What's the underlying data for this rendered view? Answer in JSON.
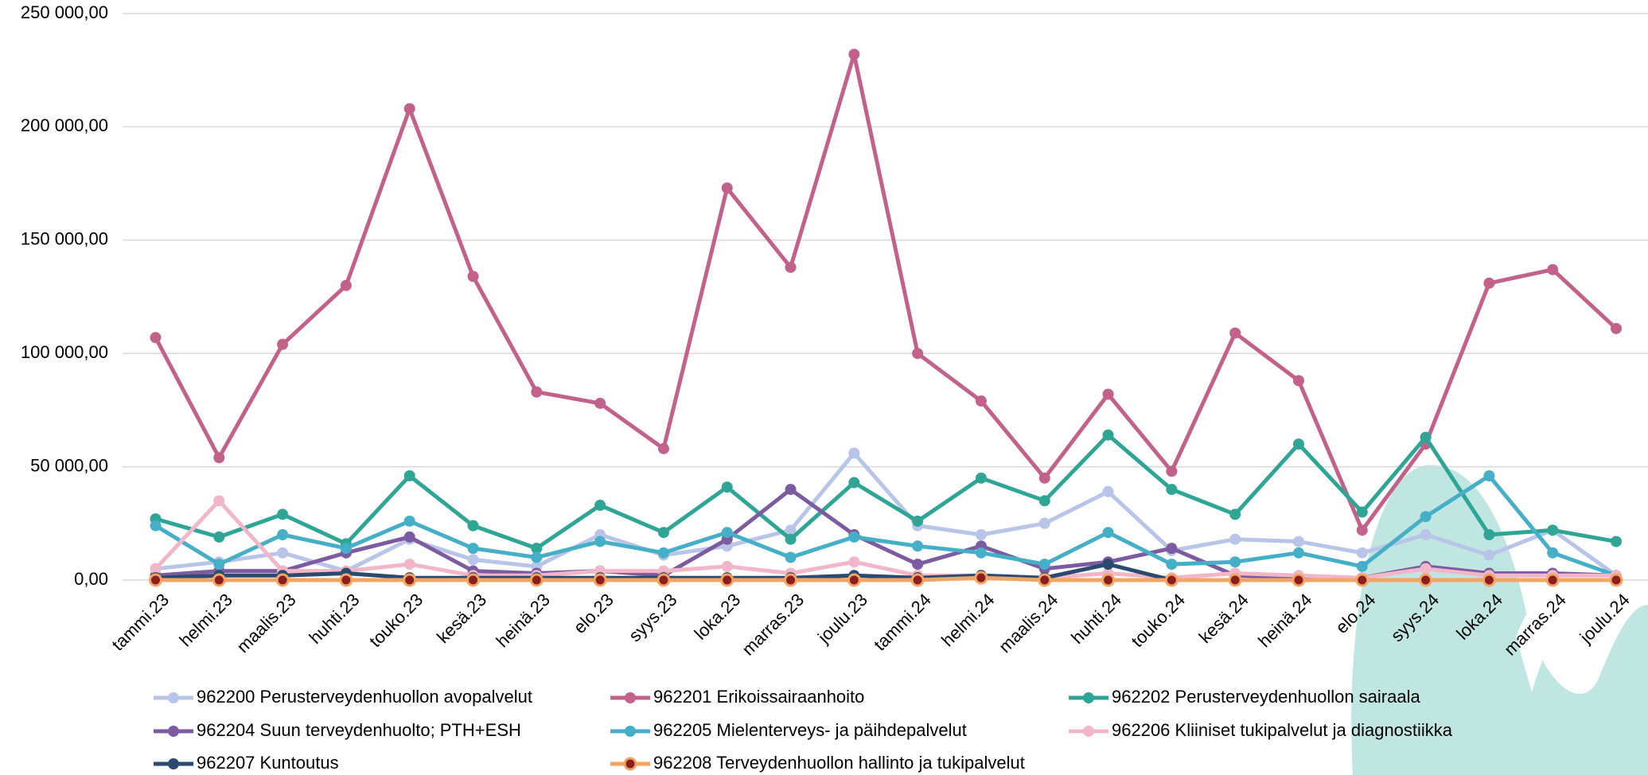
{
  "chart_data": {
    "type": "line",
    "categories": [
      "tammi.23",
      "helmi.23",
      "maalis.23",
      "huhti.23",
      "touko.23",
      "kesä.23",
      "heinä.23",
      "elo.23",
      "syys.23",
      "loka.23",
      "marras.23",
      "joulu.23",
      "tammi.24",
      "helmi.24",
      "maalis.24",
      "huhti.24",
      "touko.24",
      "kesä.24",
      "heinä.24",
      "elo.24",
      "syys.24",
      "loka.24",
      "marras.24",
      "joulu.24"
    ],
    "ylim": [
      0,
      250000
    ],
    "yticks": [
      {
        "value": 0,
        "label": "0,00"
      },
      {
        "value": 50000,
        "label": "50 000,00"
      },
      {
        "value": 100000,
        "label": "100 000,00"
      },
      {
        "value": 150000,
        "label": "150 000,00"
      },
      {
        "value": 200000,
        "label": "200 000,00"
      },
      {
        "value": 250000,
        "label": "250 000,00"
      }
    ],
    "grid": true,
    "legend": "bottom",
    "series": [
      {
        "name": "962200 Perusterveydenhuollon avopalvelut",
        "color": "#b9c5e8",
        "values": [
          5000,
          8000,
          12000,
          4000,
          18000,
          9000,
          6000,
          20000,
          11000,
          15000,
          22000,
          56000,
          24000,
          20000,
          25000,
          39000,
          13000,
          18000,
          17000,
          12000,
          20000,
          11000,
          22000,
          2000
        ]
      },
      {
        "name": "962201 Erikoissairaanhoito",
        "color": "#c2628a",
        "values": [
          107000,
          54000,
          104000,
          130000,
          208000,
          134000,
          83000,
          78000,
          58000,
          173000,
          138000,
          232000,
          100000,
          79000,
          45000,
          82000,
          48000,
          109000,
          88000,
          22000,
          60000,
          131000,
          137000,
          111000
        ]
      },
      {
        "name": "962202 Perusterveydenhuollon sairaala",
        "color": "#2fa595",
        "values": [
          27000,
          19000,
          29000,
          16000,
          46000,
          24000,
          14000,
          33000,
          21000,
          41000,
          18000,
          43000,
          26000,
          45000,
          35000,
          64000,
          40000,
          29000,
          60000,
          30000,
          63000,
          20000,
          22000,
          17000
        ]
      },
      {
        "name": "962204 Suun terveydenhuolto; PTH+ESH",
        "color": "#7c5ba1",
        "values": [
          2000,
          4000,
          4000,
          12000,
          19000,
          4000,
          3000,
          4000,
          2000,
          18000,
          40000,
          20000,
          7000,
          15000,
          5000,
          8000,
          14000,
          2000,
          1000,
          1000,
          6000,
          3000,
          3000,
          2000
        ]
      },
      {
        "name": "962205 Mielenterveys- ja päihdepalvelut",
        "color": "#46afc8",
        "values": [
          24000,
          7000,
          20000,
          14000,
          26000,
          14000,
          10000,
          17000,
          12000,
          21000,
          10000,
          19000,
          15000,
          12000,
          7000,
          21000,
          7000,
          8000,
          12000,
          6000,
          28000,
          46000,
          12000,
          2000
        ]
      },
      {
        "name": "962206 Kliiniset tukipalvelut ja diagnostiikka",
        "color": "#f1b7c9",
        "values": [
          5000,
          35000,
          4000,
          4000,
          7000,
          2000,
          2000,
          4000,
          4000,
          6000,
          3000,
          8000,
          2000,
          2000,
          1000,
          3000,
          1000,
          3000,
          2000,
          1000,
          5000,
          2000,
          2000,
          2000
        ]
      },
      {
        "name": "962207 Kuntoutus",
        "color": "#2a4a70",
        "values": [
          1000,
          2000,
          2000,
          3000,
          1000,
          1000,
          1000,
          1000,
          1000,
          1000,
          1000,
          2000,
          1000,
          2000,
          1000,
          7000,
          0,
          0,
          0,
          0,
          0,
          0,
          0,
          0
        ]
      },
      {
        "name": "962208 Terveydenhuollon hallinto ja tukipalvelut",
        "color": "#f3a564",
        "marker_color": "#8b1f1f",
        "values": [
          0,
          0,
          0,
          0,
          0,
          0,
          0,
          0,
          0,
          0,
          0,
          0,
          0,
          1000,
          0,
          0,
          0,
          0,
          0,
          0,
          0,
          0,
          0,
          0
        ]
      }
    ]
  }
}
